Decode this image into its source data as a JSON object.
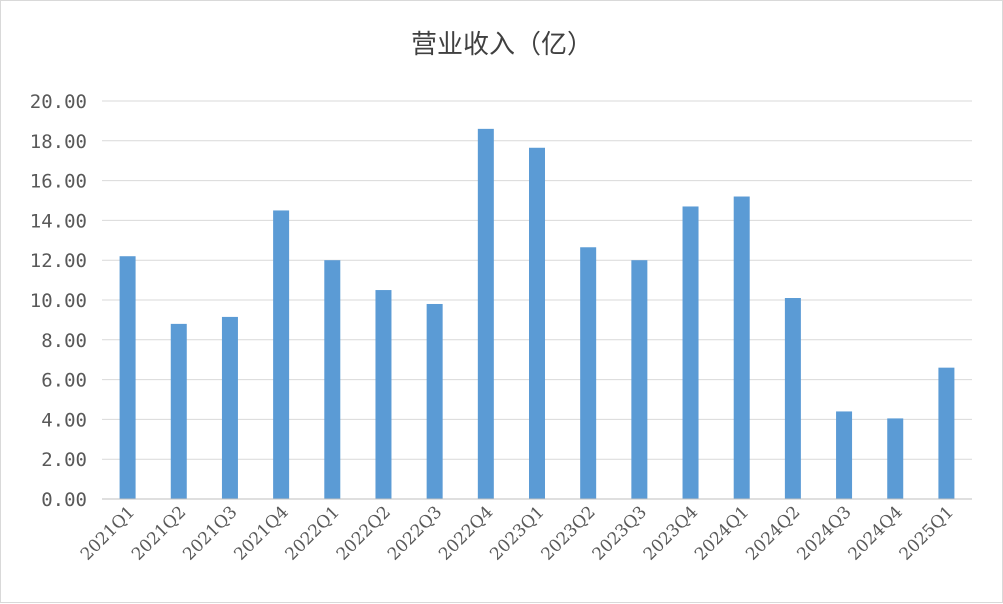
{
  "chart_data": {
    "type": "bar",
    "title": "营业收入（亿）",
    "xlabel": "",
    "ylabel": "",
    "categories": [
      "2021Q1",
      "2021Q2",
      "2021Q3",
      "2021Q4",
      "2022Q1",
      "2022Q2",
      "2022Q3",
      "2022Q4",
      "2023Q1",
      "2023Q2",
      "2023Q3",
      "2023Q4",
      "2024Q1",
      "2024Q2",
      "2024Q3",
      "2024Q4",
      "2025Q1"
    ],
    "values": [
      12.2,
      8.8,
      9.15,
      14.5,
      12.0,
      10.5,
      9.8,
      18.6,
      17.65,
      12.65,
      12.0,
      14.7,
      15.2,
      10.1,
      4.4,
      4.05,
      6.6
    ],
    "ylim": [
      0,
      20
    ],
    "yticks": [
      "0.00",
      "2.00",
      "4.00",
      "6.00",
      "8.00",
      "10.00",
      "12.00",
      "14.00",
      "16.00",
      "18.00",
      "20.00"
    ],
    "grid": true,
    "legend": "none",
    "bar_color": "#5b9bd5"
  }
}
